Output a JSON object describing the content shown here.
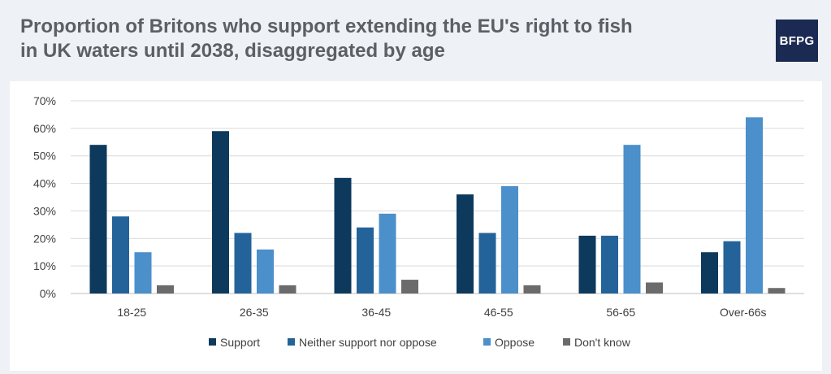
{
  "header": {
    "title_line1": "Proportion of Britons who support extending the EU's right to fish",
    "title_line2": "in UK waters until 2038, disaggregated by age",
    "logo_text": "BFPG"
  },
  "chart_data": {
    "type": "bar",
    "title": "Proportion of Britons who support extending the EU's right to fish in UK waters until 2038, disaggregated by age",
    "categories": [
      "18-25",
      "26-35",
      "36-45",
      "46-55",
      "56-65",
      "Over-66s"
    ],
    "series": [
      {
        "name": "Support",
        "color": "#0d3a5c",
        "values": [
          54,
          59,
          42,
          36,
          21,
          15
        ]
      },
      {
        "name": "Neither support nor oppose",
        "color": "#24639a",
        "values": [
          28,
          22,
          24,
          22,
          21,
          19
        ]
      },
      {
        "name": "Oppose",
        "color": "#4b8fcb",
        "values": [
          15,
          16,
          29,
          39,
          54,
          64
        ]
      },
      {
        "name": "Don't know",
        "color": "#6b6b6b",
        "values": [
          3,
          3,
          5,
          3,
          4,
          2
        ]
      }
    ],
    "yticks": [
      "0%",
      "10%",
      "20%",
      "30%",
      "40%",
      "50%",
      "60%",
      "70%"
    ],
    "ylim": [
      0,
      70
    ],
    "ylabel": "",
    "xlabel": "",
    "grid": true,
    "legend_position": "bottom"
  }
}
